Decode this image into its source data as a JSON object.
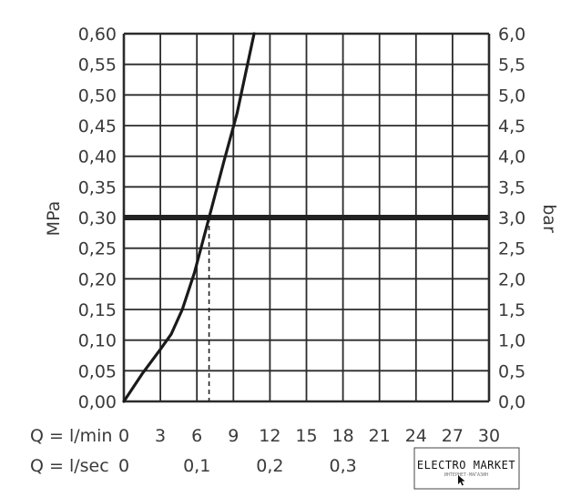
{
  "chart_data": {
    "type": "line",
    "ylabel_left": "MPa",
    "ylabel_right": "bar",
    "ylim": [
      0,
      0.6
    ],
    "xlim": [
      0,
      30
    ],
    "y_ticks_left": [
      "0,00",
      "0,05",
      "0,10",
      "0,15",
      "0,20",
      "0,25",
      "0,30",
      "0,35",
      "0,40",
      "0,45",
      "0,50",
      "0,55",
      "0,60"
    ],
    "y_ticks_right": [
      "0,0",
      "0,5",
      "1,0",
      "1,5",
      "2,0",
      "2,5",
      "3,0",
      "3,5",
      "4,0",
      "4,5",
      "5,0",
      "5,5",
      "6,0"
    ],
    "x_row1": {
      "label": "Q = l/min",
      "ticks": [
        {
          "v": 0,
          "t": "0"
        },
        {
          "v": 3,
          "t": "3"
        },
        {
          "v": 6,
          "t": "6"
        },
        {
          "v": 9,
          "t": "9"
        },
        {
          "v": 12,
          "t": "12"
        },
        {
          "v": 15,
          "t": "15"
        },
        {
          "v": 18,
          "t": "18"
        },
        {
          "v": 21,
          "t": "21"
        },
        {
          "v": 24,
          "t": "24"
        },
        {
          "v": 27,
          "t": "27"
        },
        {
          "v": 30,
          "t": "30"
        }
      ]
    },
    "x_row2": {
      "label": "Q = l/sec",
      "ticks": [
        {
          "v": 0,
          "t": "0"
        },
        {
          "v": 6,
          "t": "0,1"
        },
        {
          "v": 12,
          "t": "0,2"
        },
        {
          "v": 18,
          "t": "0,3"
        }
      ]
    },
    "series": [
      {
        "x": [
          0,
          1.5,
          3,
          3.9,
          4.8,
          5.8,
          7,
          8.2,
          9.3,
          10.7
        ],
        "y": [
          0,
          0.045,
          0.085,
          0.11,
          0.15,
          0.21,
          0.3,
          0.39,
          0.47,
          0.6
        ]
      }
    ],
    "reference_line": {
      "y": 0.3
    },
    "reference_drop": {
      "x": 7.0,
      "y": 0.3
    },
    "grid": true
  },
  "watermark": {
    "title": "ELECTRO MARKET",
    "subtitle": "ИНТЕРНЕТ-МАГАЗИН"
  }
}
